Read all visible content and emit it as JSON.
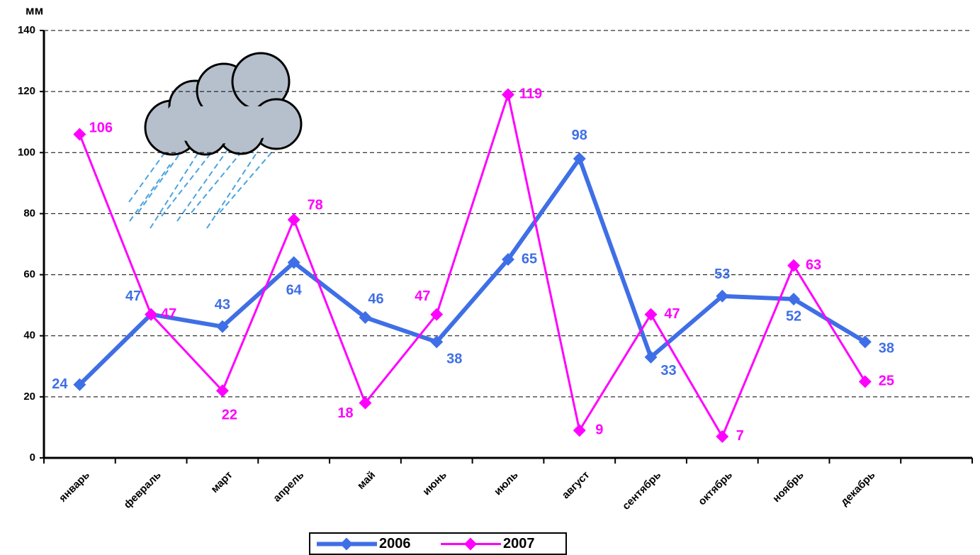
{
  "chart_data": {
    "type": "line",
    "y_label": "мм",
    "categories": [
      "январь",
      "февраль",
      "март",
      "апрель",
      "май",
      "июнь",
      "июль",
      "август",
      "сентябрь",
      "октябрь",
      "ноябрь",
      "декабрь",
      null
    ],
    "series": [
      {
        "name": "2006",
        "color": "#3f6fe6",
        "values": [
          24,
          47,
          43,
          64,
          46,
          38,
          65,
          98,
          33,
          53,
          52,
          38,
          null
        ]
      },
      {
        "name": "2007",
        "color": "#ff00ff",
        "values": [
          106,
          47,
          22,
          78,
          18,
          47,
          119,
          9,
          47,
          7,
          63,
          25,
          null
        ]
      }
    ],
    "ylim": [
      0,
      140
    ],
    "yticks": [
      0,
      20,
      40,
      60,
      80,
      100,
      120,
      140
    ],
    "grid": true,
    "legend": "bottom"
  }
}
